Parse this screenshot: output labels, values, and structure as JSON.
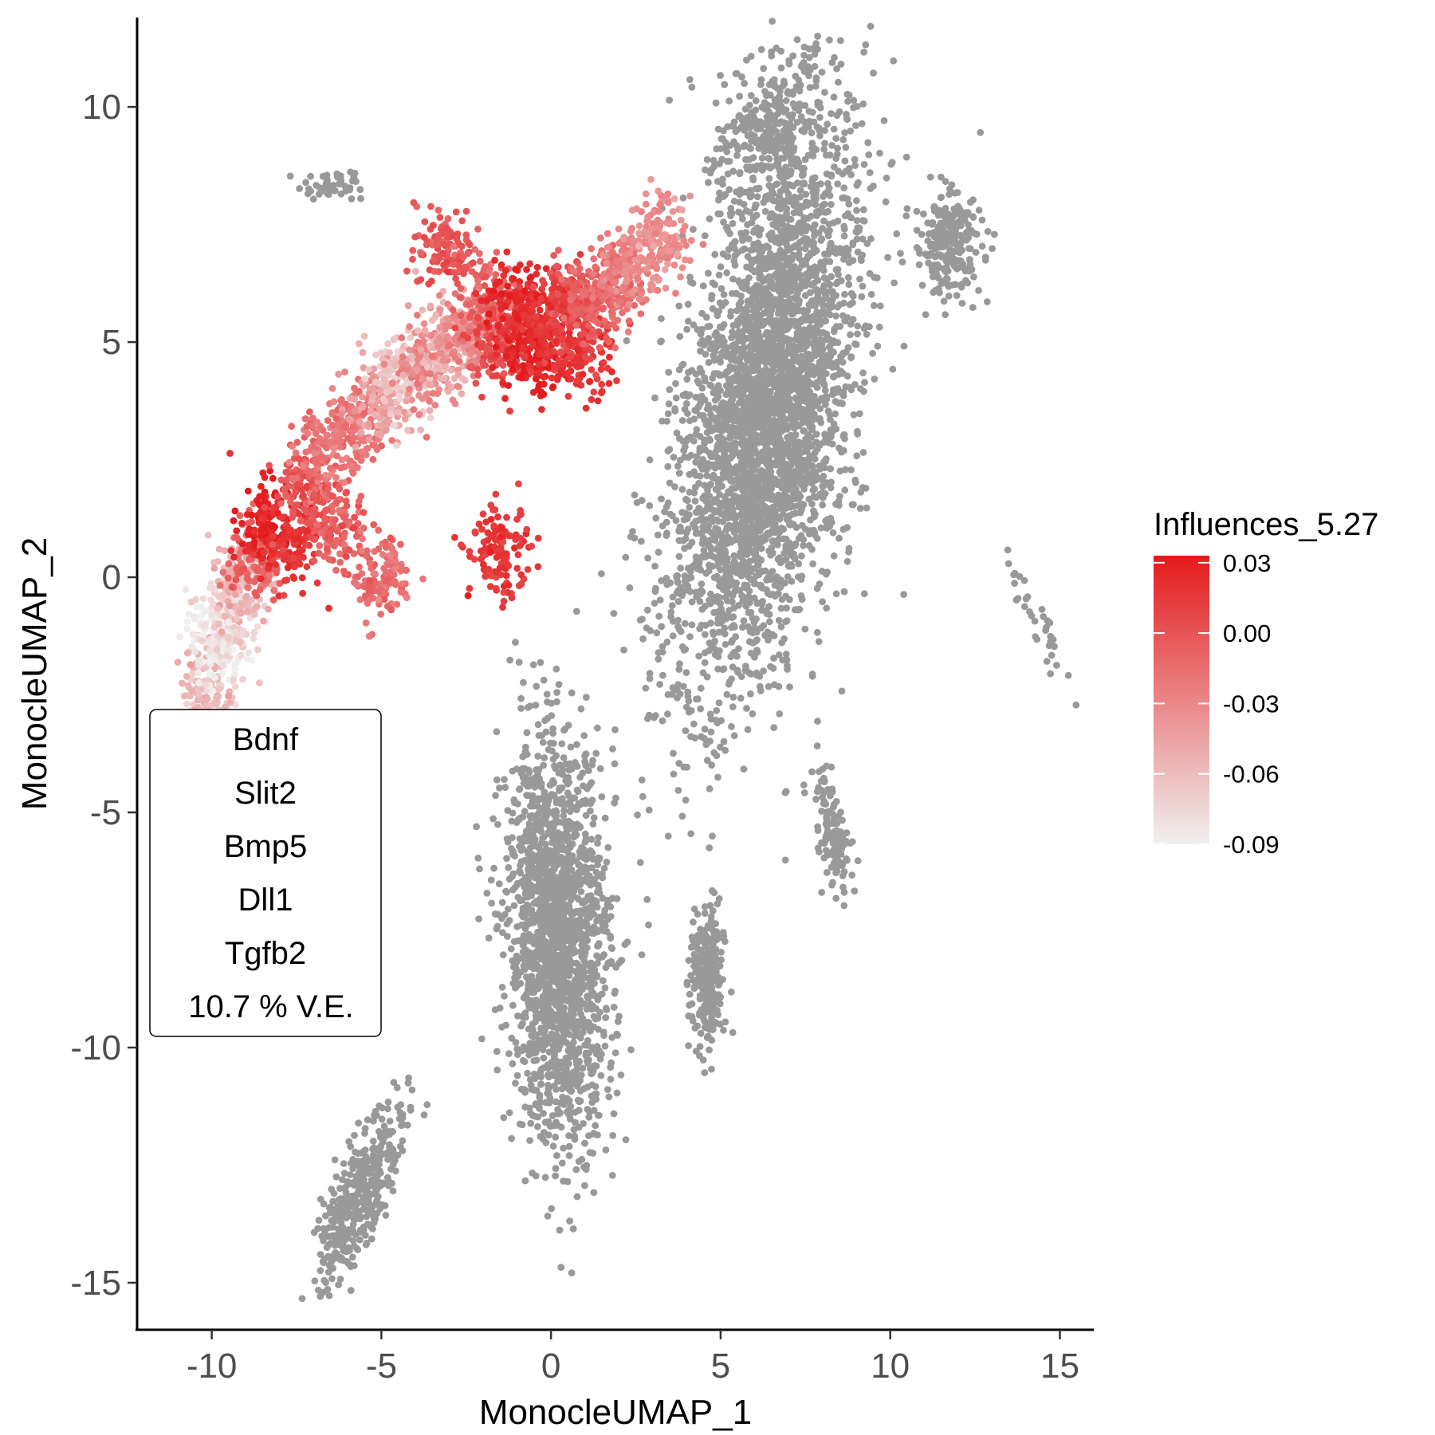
{
  "chart_data": {
    "type": "scatter",
    "title": "",
    "xlabel": "MonocleUMAP_1",
    "ylabel": "MonocleUMAP_2",
    "xlim": [
      -12.2,
      16
    ],
    "ylim": [
      -16.0,
      11.9
    ],
    "grid": false,
    "xticks": [
      {
        "value": -10,
        "label": "-10"
      },
      {
        "value": -5,
        "label": "-5"
      },
      {
        "value": 0,
        "label": "0"
      },
      {
        "value": 5,
        "label": "5"
      },
      {
        "value": 10,
        "label": "10"
      },
      {
        "value": 15,
        "label": "15"
      }
    ],
    "yticks": [
      {
        "value": 10,
        "label": "10"
      },
      {
        "value": 5,
        "label": "5"
      },
      {
        "value": 0,
        "label": "0"
      },
      {
        "value": -5,
        "label": "-5"
      },
      {
        "value": -10,
        "label": "-10"
      },
      {
        "value": -15,
        "label": "-15"
      }
    ],
    "colorbar": {
      "title": "Influences_5.27",
      "placement": "right",
      "range": [
        -0.09,
        0.033
      ],
      "colors": [
        "#F0F0F0",
        "#E41A1C"
      ],
      "ticks": [
        {
          "value": 0.03,
          "label": "0.03"
        },
        {
          "value": 0.0,
          "label": "0.00"
        },
        {
          "value": -0.03,
          "label": "-0.03"
        },
        {
          "value": -0.06,
          "label": "-0.06"
        },
        {
          "value": -0.09,
          "label": "-0.09"
        }
      ]
    },
    "annotation": {
      "lines": [
        "Bdnf",
        "Slit2",
        "Bmp5",
        "Dll1",
        "Tgfb2",
        "10.7 % V.E."
      ]
    },
    "colored_trajectory": [
      {
        "x": -9.1,
        "y": -4.4,
        "value": -0.075
      },
      {
        "x": -9.8,
        "y": -3.4,
        "value": -0.072
      },
      {
        "x": -10.2,
        "y": -2.4,
        "value": -0.06
      },
      {
        "x": -9.9,
        "y": -1.4,
        "value": -0.088
      },
      {
        "x": -9.4,
        "y": -0.8,
        "value": -0.075
      },
      {
        "x": -9.2,
        "y": -0.1,
        "value": -0.055
      },
      {
        "x": -8.6,
        "y": 0.4,
        "value": -0.01
      },
      {
        "x": -8.4,
        "y": 1.2,
        "value": 0.03
      },
      {
        "x": -7.7,
        "y": 0.7,
        "value": 0.018
      },
      {
        "x": -7.2,
        "y": 1.9,
        "value": 0.0
      },
      {
        "x": -6.7,
        "y": 2.6,
        "value": -0.02
      },
      {
        "x": -6.3,
        "y": 1.1,
        "value": -0.005
      },
      {
        "x": -5.7,
        "y": 3.3,
        "value": -0.018
      },
      {
        "x": -5.1,
        "y": 3.6,
        "value": -0.045
      },
      {
        "x": -4.4,
        "y": 4.3,
        "value": -0.065
      },
      {
        "x": -3.7,
        "y": 4.5,
        "value": -0.03
      },
      {
        "x": -3.1,
        "y": 4.9,
        "value": -0.055
      },
      {
        "x": -2.6,
        "y": 5.1,
        "value": -0.03
      },
      {
        "x": -1.9,
        "y": 5.9,
        "value": -0.01
      },
      {
        "x": -1.5,
        "y": 4.9,
        "value": 0.005
      },
      {
        "x": -1.0,
        "y": 5.8,
        "value": 0.025
      },
      {
        "x": -0.6,
        "y": 4.6,
        "value": 0.032
      },
      {
        "x": -0.2,
        "y": 5.3,
        "value": 0.02
      },
      {
        "x": 0.4,
        "y": 5.8,
        "value": 0.01
      },
      {
        "x": 0.9,
        "y": 4.7,
        "value": 0.015
      },
      {
        "x": 1.2,
        "y": 5.9,
        "value": -0.005
      },
      {
        "x": 1.8,
        "y": 6.2,
        "value": -0.015
      },
      {
        "x": 2.5,
        "y": 6.6,
        "value": -0.03
      },
      {
        "x": 3.2,
        "y": 7.2,
        "value": -0.035
      },
      {
        "x": -3.1,
        "y": 7.0,
        "value": 0.0
      },
      {
        "x": -5.0,
        "y": 0.0,
        "value": -0.015
      },
      {
        "x": -1.5,
        "y": 0.5,
        "value": 0.015
      }
    ],
    "grey_clusters": [
      {
        "name": "",
        "x": 6.3,
        "y": 3.5,
        "count": 3600
      },
      {
        "name": "",
        "x": 0.2,
        "y": -7.7,
        "count": 1900
      },
      {
        "name": "",
        "x": 6.5,
        "y": 9.5,
        "count": 300
      },
      {
        "name": "",
        "x": 11.7,
        "y": 7.1,
        "count": 250
      },
      {
        "name": "",
        "x": -6.5,
        "y": 8.3,
        "count": 50
      },
      {
        "name": "",
        "x": -5.6,
        "y": -13.1,
        "count": 400
      },
      {
        "name": "",
        "x": 4.6,
        "y": -8.6,
        "count": 250
      },
      {
        "name": "",
        "x": 8.3,
        "y": -5.5,
        "count": 120
      },
      {
        "name": "",
        "x": 14.3,
        "y": -0.9,
        "count": 35
      }
    ],
    "colors": {
      "cluster_grey": "#999999",
      "legend_low": "#F0F0F0",
      "legend_high": "#E41A1C"
    }
  }
}
